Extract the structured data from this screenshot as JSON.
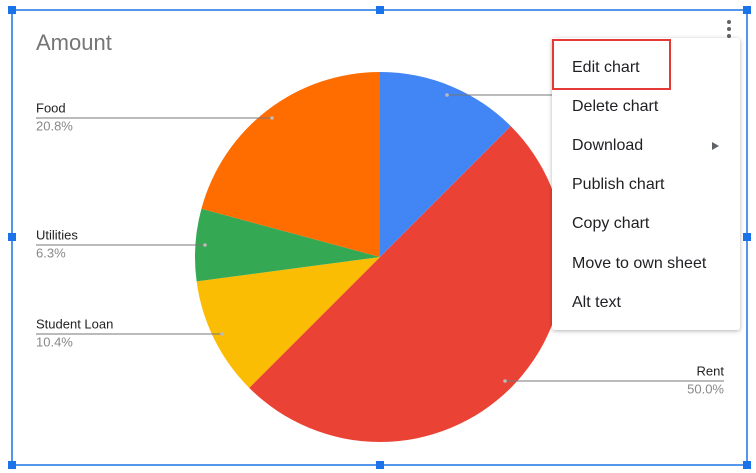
{
  "chart_data": {
    "type": "pie",
    "title": "Amount",
    "categories": [
      null,
      "Rent",
      "Student Loan",
      "Utilities",
      "Food"
    ],
    "values": [
      12.5,
      50.0,
      10.4,
      6.3,
      20.8
    ],
    "value_labels": [
      null,
      "50.0%",
      "10.4%",
      "6.3%",
      "20.8%"
    ],
    "colors": [
      "#4285f4",
      "#ea4335",
      "#fbbc04",
      "#34a853",
      "#ff6d01"
    ]
  },
  "menu": {
    "items": [
      "Edit chart",
      "Delete chart",
      "Download",
      "Publish chart",
      "Copy chart",
      "Move to own sheet",
      "Alt text"
    ]
  }
}
